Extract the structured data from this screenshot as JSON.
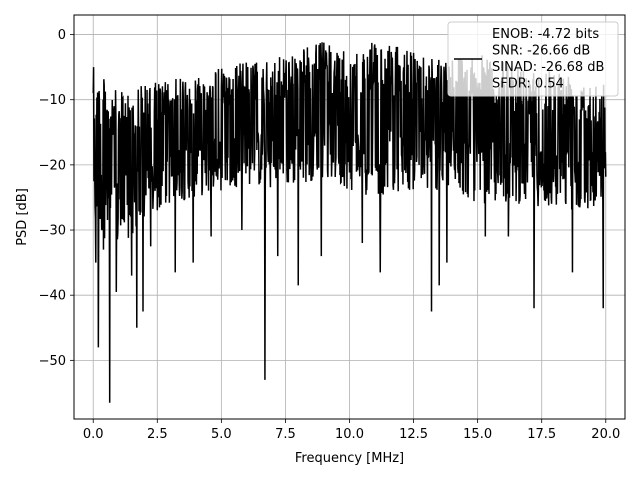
{
  "chart_data": {
    "type": "line",
    "xlabel": "Frequency [MHz]",
    "ylabel": "PSD [dB]",
    "xlim": [
      -0.75,
      20.75
    ],
    "ylim": [
      -59,
      3
    ],
    "xticks": [
      0.0,
      2.5,
      5.0,
      7.5,
      10.0,
      12.5,
      15.0,
      17.5,
      20.0
    ],
    "xtick_labels": [
      "0.0",
      "2.5",
      "5.0",
      "7.5",
      "10.0",
      "12.5",
      "15.0",
      "17.5",
      "20.0"
    ],
    "yticks": [
      0,
      -10,
      -20,
      -30,
      -40,
      -50
    ],
    "ytick_labels": [
      "0",
      "−10",
      "−20",
      "−30",
      "−40",
      "−50"
    ],
    "grid": true,
    "line_color": "#000000",
    "legend": {
      "placement": "top-right",
      "lines": [
        "ENOB: -4.72 bits",
        "SNR: -26.66 dB",
        "SINAD: -26.68 dB",
        "SFDR: 0.54"
      ]
    },
    "series": [
      {
        "x_range": [
          0,
          20
        ],
        "envelope_x": [
          0,
          1,
          2,
          3,
          4,
          5,
          6,
          7,
          8,
          9,
          10,
          11,
          12,
          13,
          14,
          15,
          16,
          17,
          18,
          19,
          20
        ],
        "envelope_upper": [
          -5,
          -9,
          -7,
          -7,
          -6,
          -5,
          -4,
          -4,
          -2,
          -1,
          -3,
          -1,
          -2,
          -3,
          -3,
          -3,
          -4,
          -5,
          -5,
          -6,
          -7
        ],
        "envelope_lower": [
          -30,
          -33,
          -29,
          -26,
          -25,
          -24,
          -23,
          -24,
          -23,
          -22,
          -24,
          -25,
          -24,
          -24,
          -24,
          -26,
          -26,
          -26,
          -27,
          -27,
          -26
        ],
        "spikes": [
          {
            "x": 0.1,
            "y": -35
          },
          {
            "x": 0.2,
            "y": -48
          },
          {
            "x": 0.4,
            "y": -33
          },
          {
            "x": 0.65,
            "y": -56.5
          },
          {
            "x": 0.9,
            "y": -39.5
          },
          {
            "x": 1.5,
            "y": -37
          },
          {
            "x": 1.7,
            "y": -45
          },
          {
            "x": 1.95,
            "y": -42.5
          },
          {
            "x": 2.25,
            "y": -32.5
          },
          {
            "x": 3.2,
            "y": -36.5
          },
          {
            "x": 3.9,
            "y": -35
          },
          {
            "x": 4.6,
            "y": -31
          },
          {
            "x": 5.8,
            "y": -30
          },
          {
            "x": 6.7,
            "y": -53
          },
          {
            "x": 7.2,
            "y": -34
          },
          {
            "x": 8.0,
            "y": -38.5
          },
          {
            "x": 8.9,
            "y": -34
          },
          {
            "x": 10.5,
            "y": -32
          },
          {
            "x": 11.2,
            "y": -36.5
          },
          {
            "x": 13.2,
            "y": -42.5
          },
          {
            "x": 13.5,
            "y": -38.5
          },
          {
            "x": 13.8,
            "y": -35
          },
          {
            "x": 15.3,
            "y": -31
          },
          {
            "x": 16.2,
            "y": -31
          },
          {
            "x": 17.2,
            "y": -42
          },
          {
            "x": 18.7,
            "y": -36.5
          },
          {
            "x": 19.9,
            "y": -42
          }
        ]
      }
    ]
  }
}
